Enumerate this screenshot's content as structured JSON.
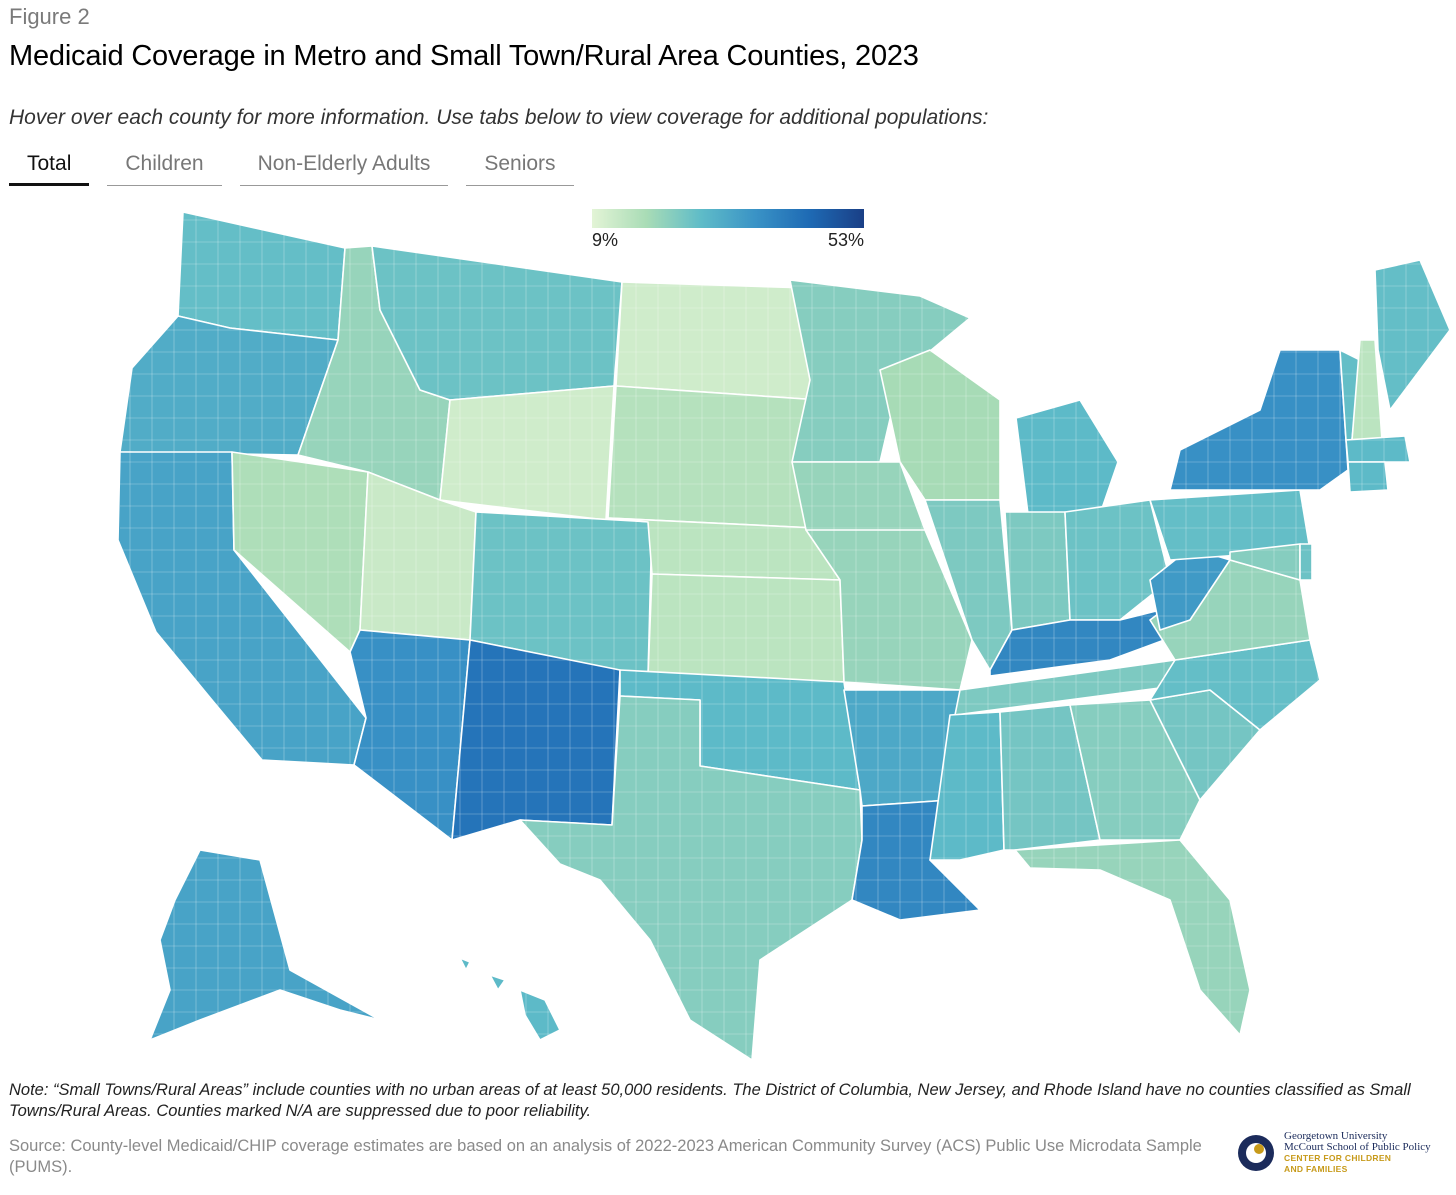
{
  "header": {
    "figure_label": "Figure 2",
    "title": "Medicaid Coverage in Metro and Small Town/Rural Area Counties, 2023",
    "subtitle": "Hover over each county for more information. Use tabs below to view coverage for additional populations:"
  },
  "tabs": [
    {
      "label": "Total",
      "active": true
    },
    {
      "label": "Children",
      "active": false
    },
    {
      "label": "Non-Elderly Adults",
      "active": false
    },
    {
      "label": "Seniors",
      "active": false
    }
  ],
  "legend": {
    "min_label": "9%",
    "max_label": "53%",
    "min_value": 9,
    "max_value": 53
  },
  "chart_data": {
    "type": "choropleth",
    "title": "Medicaid Coverage in Metro and Small Town/Rural Area Counties, 2023",
    "metric": "Total Medicaid/CHIP coverage rate (%)",
    "scale": {
      "min": 9,
      "max": 53,
      "colors": [
        "#e3f4d6",
        "#a9dcb6",
        "#5fbcc8",
        "#3a93c6",
        "#1e6ab4",
        "#1a3f86"
      ]
    },
    "approx_state_levels": [
      {
        "state": "WA",
        "value": 26
      },
      {
        "state": "OR",
        "value": 30
      },
      {
        "state": "CA",
        "value": 32
      },
      {
        "state": "NV",
        "value": 17
      },
      {
        "state": "ID",
        "value": 20
      },
      {
        "state": "MT",
        "value": 25
      },
      {
        "state": "WY",
        "value": 12
      },
      {
        "state": "UT",
        "value": 13
      },
      {
        "state": "CO",
        "value": 25
      },
      {
        "state": "AZ",
        "value": 36
      },
      {
        "state": "NM",
        "value": 42
      },
      {
        "state": "ND",
        "value": 12
      },
      {
        "state": "SD",
        "value": 16
      },
      {
        "state": "NE",
        "value": 15
      },
      {
        "state": "KS",
        "value": 15
      },
      {
        "state": "OK",
        "value": 27
      },
      {
        "state": "TX",
        "value": 22
      },
      {
        "state": "MN",
        "value": 22
      },
      {
        "state": "IA",
        "value": 20
      },
      {
        "state": "MO",
        "value": 20
      },
      {
        "state": "AR",
        "value": 31
      },
      {
        "state": "LA",
        "value": 38
      },
      {
        "state": "WI",
        "value": 18
      },
      {
        "state": "IL",
        "value": 23
      },
      {
        "state": "MI",
        "value": 27
      },
      {
        "state": "IN",
        "value": 23
      },
      {
        "state": "OH",
        "value": 25
      },
      {
        "state": "KY",
        "value": 38
      },
      {
        "state": "TN",
        "value": 23
      },
      {
        "state": "MS",
        "value": 27
      },
      {
        "state": "AL",
        "value": 24
      },
      {
        "state": "GA",
        "value": 22
      },
      {
        "state": "FL",
        "value": 20
      },
      {
        "state": "SC",
        "value": 24
      },
      {
        "state": "NC",
        "value": 26
      },
      {
        "state": "VA",
        "value": 20
      },
      {
        "state": "WV",
        "value": 34
      },
      {
        "state": "PA",
        "value": 26
      },
      {
        "state": "NY",
        "value": 36
      },
      {
        "state": "VT",
        "value": 26
      },
      {
        "state": "NH",
        "value": 15
      },
      {
        "state": "ME",
        "value": 26
      },
      {
        "state": "MA",
        "value": 27
      },
      {
        "state": "CT",
        "value": 27
      },
      {
        "state": "MD",
        "value": 22
      },
      {
        "state": "DE",
        "value": 25
      },
      {
        "state": "AK",
        "value": 32
      },
      {
        "state": "HI",
        "value": 27
      }
    ]
  },
  "footer": {
    "note": "Note: “Small Towns/Rural Areas” include counties with no urban areas of at least 50,000 residents. The District of Columbia, New Jersey, and Rhode Island have no counties classified as Small Towns/Rural Areas. Counties marked N/A are suppressed due to poor reliability.",
    "source": "Source: County-level Medicaid/CHIP coverage estimates are based on an analysis of 2022-2023 American Community Survey (ACS) Public Use Microdata Sample (PUMS).",
    "logo_line1": "Georgetown University",
    "logo_line2": "McCourt School of Public Policy",
    "logo_line3": "CENTER FOR CHILDREN",
    "logo_line4": "AND FAMILIES"
  }
}
